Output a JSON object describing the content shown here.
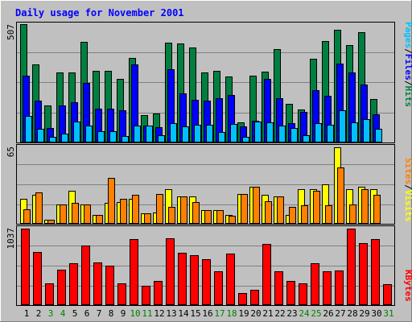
{
  "chart_data": {
    "type": "bar",
    "title": "Daily usage for November 2001",
    "categories": [
      "1",
      "2",
      "3",
      "4",
      "5",
      "6",
      "7",
      "8",
      "9",
      "10",
      "11",
      "12",
      "13",
      "14",
      "15",
      "16",
      "17",
      "18",
      "19",
      "20",
      "21",
      "22",
      "23",
      "24",
      "25",
      "26",
      "27",
      "28",
      "29",
      "30",
      "31"
    ],
    "weekend_days": [
      3,
      4,
      10,
      11,
      17,
      18,
      24,
      25,
      31
    ],
    "panels": [
      {
        "id": "hits",
        "ymax_label": "507",
        "ymax": 507,
        "legend": [
          "Pages",
          "/",
          "Files",
          "/",
          "Hits"
        ],
        "series": [
          {
            "name": "Hits",
            "color": "#008040",
            "values": [
              507,
              335,
              155,
              300,
              298,
              429,
              307,
              307,
              271,
              361,
              113,
              121,
              428,
              422,
              406,
              298,
              304,
              282,
              85,
              285,
              301,
              401,
              162,
              140,
              357,
              435,
              482,
              415,
              473,
              183,
              0
            ]
          },
          {
            "name": "Files",
            "color": "#0000ff",
            "values": [
              286,
              177,
              59,
              155,
              170,
              254,
              142,
              141,
              135,
              334,
              69,
              61,
              314,
              209,
              180,
              178,
              188,
              200,
              66,
              91,
              271,
              188,
              79,
              130,
              221,
              197,
              336,
              300,
              245,
              118,
              0
            ]
          },
          {
            "name": "Pages",
            "color": "#00c0ff",
            "values": [
              110,
              57,
              20,
              35,
              87,
              69,
              44,
              46,
              25,
              69,
              70,
              27,
              81,
              65,
              74,
              72,
              42,
              77,
              21,
              87,
              84,
              70,
              60,
              29,
              79,
              72,
              137,
              82,
              96,
              54,
              0
            ]
          }
        ]
      },
      {
        "id": "visits",
        "ymax_label": "65",
        "ymax": 65,
        "legend": [
          "Sites",
          "/",
          "Visits"
        ],
        "series": [
          {
            "name": "Visits",
            "color": "#ffff00",
            "values": [
              21,
              24,
              3,
              16,
              28,
              16,
              7,
              17,
              18,
              21,
              8,
              9,
              29,
              23,
              23,
              11,
              11,
              7,
              25,
              31,
              24,
              23,
              7,
              29,
              29,
              33,
              65,
              29,
              31,
              29,
              0
            ]
          },
          {
            "name": "Sites",
            "color": "#ff8000",
            "values": [
              12,
              26,
              3,
              16,
              17,
              16,
              7,
              39,
              21,
              24,
              8,
              25,
              14,
              23,
              18,
              11,
              11,
              6,
              25,
              31,
              19,
              23,
              14,
              15,
              28,
              15,
              48,
              16,
              29,
              24,
              0
            ]
          }
        ]
      },
      {
        "id": "kbytes",
        "ymax_label": "1037",
        "ymax": 1037,
        "legend": [
          "KBytes"
        ],
        "series": [
          {
            "name": "KBytes",
            "color": "#ff0000",
            "values": [
              1037,
              722,
              285,
              471,
              561,
              808,
              578,
              526,
              284,
              891,
              251,
              315,
              903,
              709,
              669,
              620,
              448,
              699,
              157,
              199,
              829,
              457,
              319,
              291,
              558,
              454,
              465,
              1037,
              834,
              891,
              277
            ]
          }
        ]
      }
    ],
    "colors": {
      "background": "#c0c0c0",
      "title": "#0000ff",
      "weekday_label": "#000000",
      "weekend_label": "#008000",
      "ymax_label": "#000000"
    }
  }
}
